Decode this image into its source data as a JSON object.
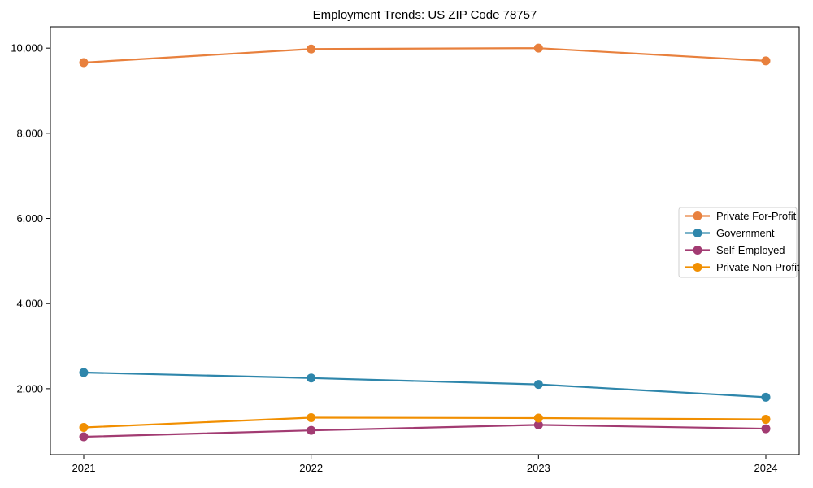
{
  "chart_data": {
    "type": "line",
    "title": "Employment Trends: US ZIP Code 78757",
    "x": [
      "2021",
      "2022",
      "2023",
      "2024"
    ],
    "series": [
      {
        "name": "Private For-Profit",
        "color": "#E8803D",
        "values": [
          9660,
          9980,
          10000,
          9700
        ]
      },
      {
        "name": "Government",
        "color": "#2E86AB",
        "values": [
          2380,
          2250,
          2100,
          1800
        ]
      },
      {
        "name": "Self-Employed",
        "color": "#A23B72",
        "values": [
          870,
          1020,
          1150,
          1060
        ]
      },
      {
        "name": "Private Non-Profit",
        "color": "#F18F01",
        "values": [
          1090,
          1320,
          1310,
          1280
        ]
      }
    ],
    "yticks": [
      {
        "value": 2000,
        "label": "2,000"
      },
      {
        "value": 4000,
        "label": "4,000"
      },
      {
        "value": 6000,
        "label": "6,000"
      },
      {
        "value": 8000,
        "label": "8,000"
      },
      {
        "value": 10000,
        "label": "10,000"
      }
    ],
    "ylim": [
      450,
      10500
    ],
    "grid": false,
    "legend_position": "right-middle",
    "axis_color": "#000000",
    "text_color": "#000000",
    "legend_border_color": "#cfcfcf",
    "legend_background": "#ffffff"
  }
}
